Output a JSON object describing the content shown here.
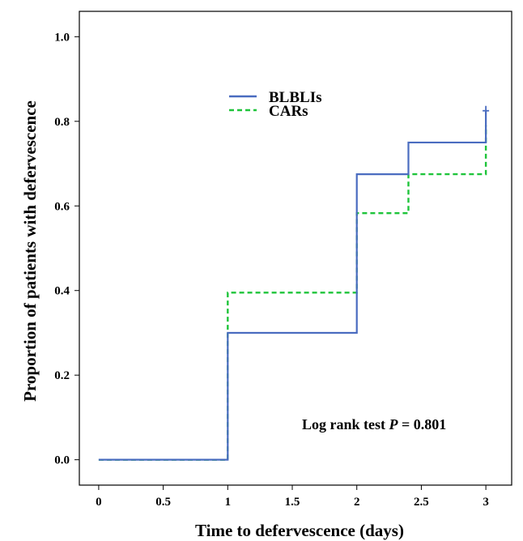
{
  "chart_data": {
    "type": "line",
    "step": true,
    "xlabel": "Time to defervescence (days)",
    "ylabel": "Proportion of patients with defervescence",
    "xlim": [
      -0.15,
      3.2
    ],
    "ylim": [
      -0.06,
      1.06
    ],
    "x_ticks": [
      "0",
      "0.5",
      "1",
      "1.5",
      "2",
      "2.5",
      "3"
    ],
    "x_tick_values": [
      0,
      0.5,
      1,
      1.5,
      2,
      2.5,
      3
    ],
    "y_ticks": [
      "0.0",
      "0.2",
      "0.4",
      "0.6",
      "0.8",
      "1.0"
    ],
    "y_tick_values": [
      0,
      0.2,
      0.4,
      0.6,
      0.8,
      1.0
    ],
    "legend_position": "upper-middle",
    "series": [
      {
        "name": "BLBLIs",
        "color": "#4a6cc0",
        "style": "solid",
        "points": [
          [
            0,
            0
          ],
          [
            1,
            0.3
          ],
          [
            2,
            0.675
          ],
          [
            2.4,
            0.75
          ],
          [
            3,
            0.825
          ]
        ],
        "end_x": 3,
        "censor_marks": [
          [
            3,
            0.825
          ]
        ]
      },
      {
        "name": "CARs",
        "color": "#1ec43a",
        "style": "dashed",
        "points": [
          [
            0,
            0
          ],
          [
            1,
            0.395
          ],
          [
            2,
            0.583
          ],
          [
            2.4,
            0.675
          ],
          [
            3,
            0.79
          ]
        ],
        "end_x": 3,
        "censor_marks": []
      }
    ],
    "annotations": [
      {
        "prefix": "Log rank test ",
        "italic": "P",
        "suffix": " = 0.801"
      }
    ]
  }
}
